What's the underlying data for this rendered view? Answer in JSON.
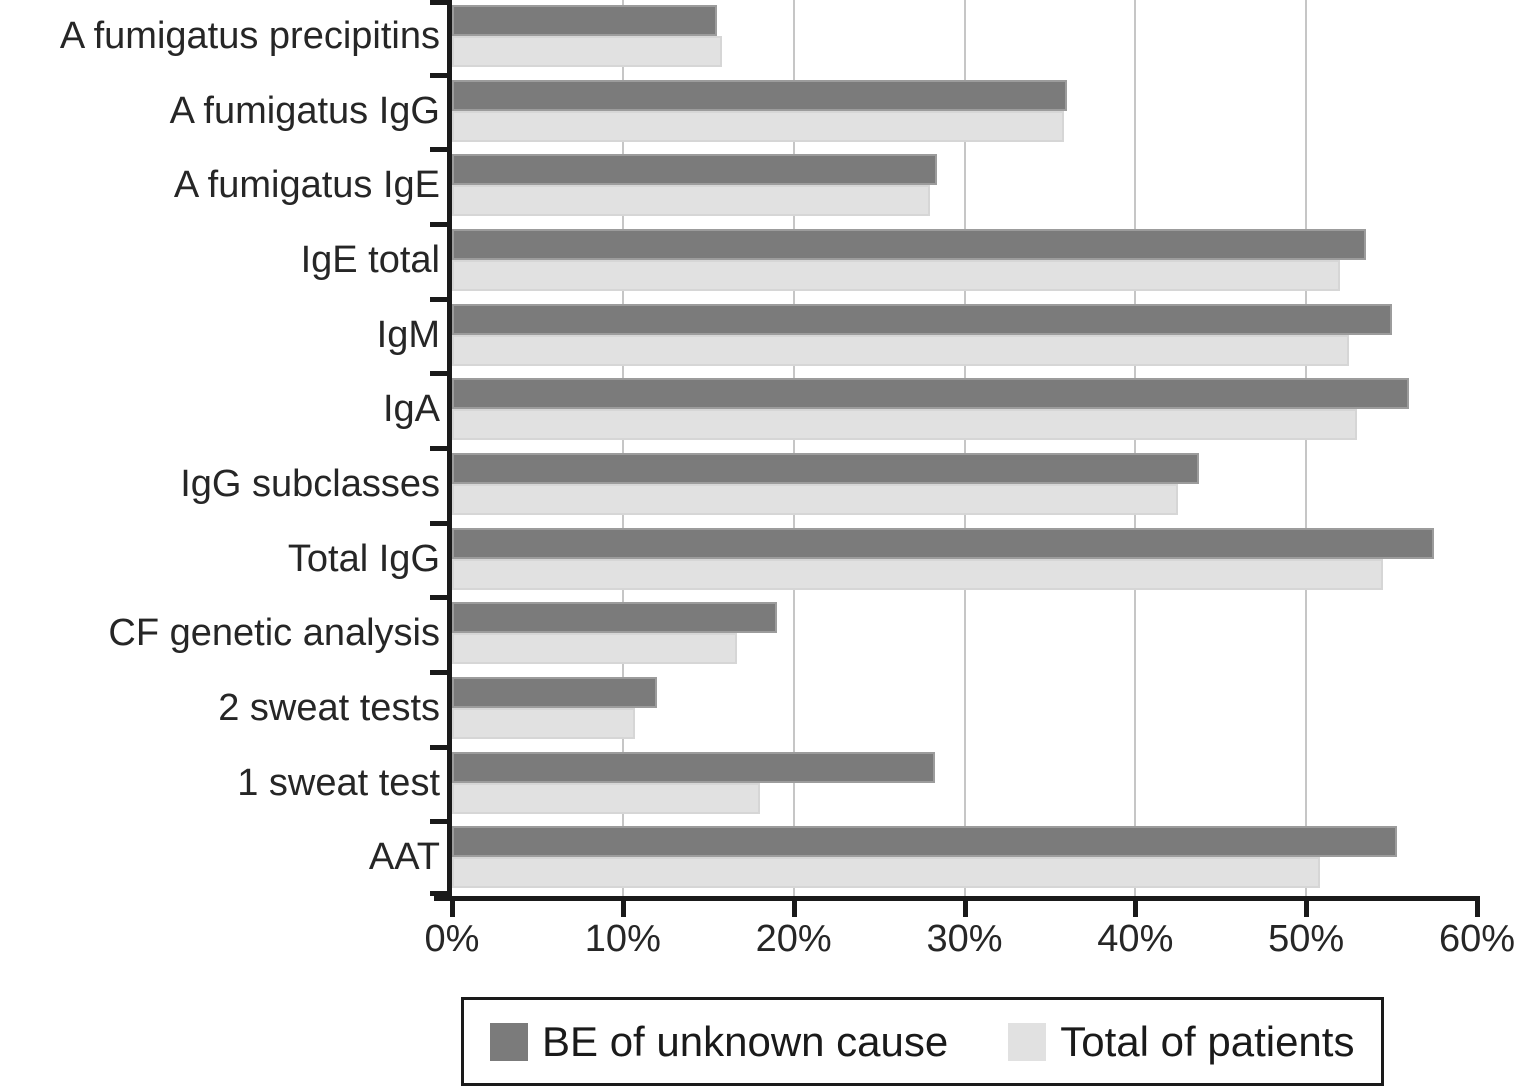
{
  "chart_data": {
    "type": "bar",
    "orientation": "horizontal",
    "title": "",
    "xlabel": "",
    "ylabel": "",
    "categories": [
      "A fumigatus precipitins",
      "A fumigatus IgG",
      "A fumigatus IgE",
      "IgE total",
      "IgM",
      "IgA",
      "IgG subclasses",
      "Total IgG",
      "CF genetic analysis",
      "2 sweat tests",
      "1 sweat test",
      "AAT"
    ],
    "series": [
      {
        "name": "BE of unknown cause",
        "color": "#7b7b7b",
        "border_color": "#9c9c9c",
        "values": [
          15.5,
          36.0,
          28.4,
          53.5,
          55.0,
          56.0,
          43.7,
          57.5,
          19.0,
          12.0,
          28.3,
          55.3
        ]
      },
      {
        "name": "Total of patients",
        "color": "#e1e1e1",
        "border_color": "#d6d6d6",
        "values": [
          15.8,
          35.8,
          28.0,
          52.0,
          52.5,
          53.0,
          42.5,
          54.5,
          16.7,
          10.7,
          18.0,
          50.8
        ]
      }
    ],
    "x_axis": {
      "min": 0,
      "max": 60,
      "tick_step": 10,
      "tick_labels": [
        "0%",
        "10%",
        "20%",
        "30%",
        "40%",
        "50%",
        "60%"
      ],
      "unit": "%"
    },
    "grid": {
      "vertical_lines_at": [
        10,
        20,
        30,
        40,
        50
      ],
      "color": "#c6c6c6"
    },
    "axis_color": "#1a1a1a",
    "legend": {
      "position": "bottom",
      "entries": [
        "BE of unknown cause",
        "Total of patients"
      ]
    }
  }
}
